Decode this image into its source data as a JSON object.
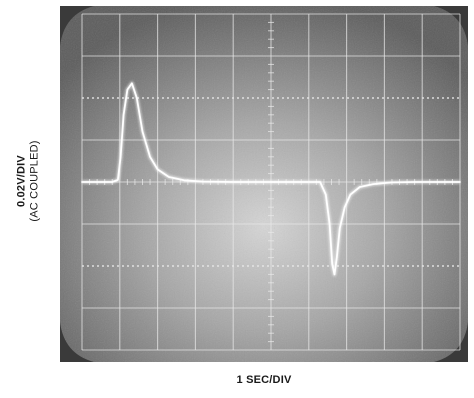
{
  "chart_data": {
    "type": "line",
    "title": "",
    "ylabel": "0.02V/DIV",
    "ylabel_note": "(AC COUPLED)",
    "xlabel": "1 SEC/DIV",
    "x_divisions": 10,
    "y_divisions": 8,
    "grid": true,
    "x_unit": "div",
    "y_unit": "div",
    "series": [
      {
        "x": [
          0.0,
          0.5,
          0.8,
          0.95,
          1.02,
          1.1,
          1.2,
          1.32,
          1.45,
          1.6,
          1.8,
          2.0,
          2.3,
          2.7,
          3.2,
          4.0,
          5.0,
          6.0,
          6.3,
          6.45,
          6.55,
          6.62,
          6.68,
          6.74,
          6.82,
          6.95,
          7.1,
          7.35,
          7.7,
          8.2,
          8.8,
          9.5,
          10.0
        ],
        "y": [
          0.0,
          0.0,
          0.0,
          0.05,
          0.6,
          1.6,
          2.2,
          2.35,
          2.0,
          1.2,
          0.6,
          0.3,
          0.12,
          0.04,
          0.01,
          0.0,
          0.0,
          0.0,
          0.0,
          -0.3,
          -1.0,
          -1.95,
          -2.2,
          -1.8,
          -1.1,
          -0.6,
          -0.3,
          -0.12,
          -0.05,
          -0.01,
          0.0,
          0.0,
          0.0
        ]
      }
    ]
  },
  "colors": {
    "screen_dark": "#3f3f3f",
    "screen_mid": "#8c8c8c",
    "screen_glow": "#d6d6d6",
    "graticule": "#e8e8e8",
    "trace": "#ffffff",
    "label_text": "#1a1a1a"
  }
}
